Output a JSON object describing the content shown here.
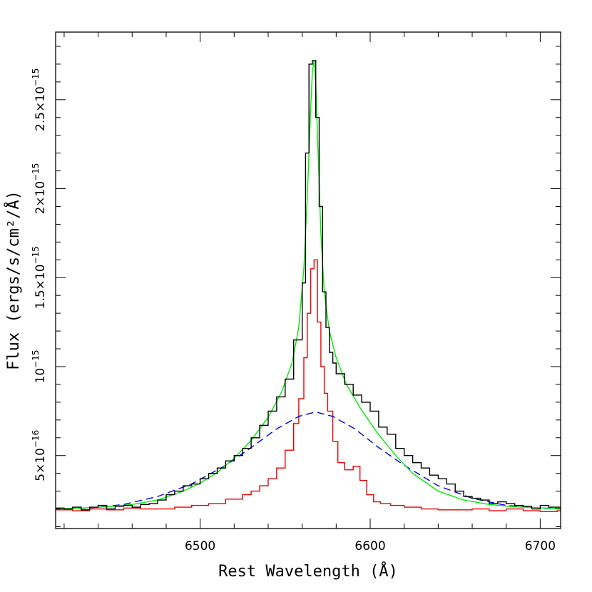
{
  "chart_data": {
    "type": "line",
    "title": "",
    "xlabel": "Rest Wavelength (Å)",
    "ylabel": "Flux (ergs/s/cm²/Å)",
    "xlim": [
      6415,
      6712
    ],
    "ylim": [
      9e-17,
      2.88e-15
    ],
    "x_ticks": [
      {
        "value": 6500,
        "label": "6500"
      },
      {
        "value": 6600,
        "label": "6600"
      },
      {
        "value": 6700,
        "label": "6700"
      }
    ],
    "y_ticks": [
      {
        "value": 5e-16,
        "mantissa": "5×10",
        "exponent": "−16"
      },
      {
        "value": 1e-15,
        "mantissa": "10",
        "exponent": "−15"
      },
      {
        "value": 1.5e-15,
        "mantissa": "1.5×10",
        "exponent": "−15"
      },
      {
        "value": 2e-15,
        "mantissa": "2×10",
        "exponent": "−15"
      },
      {
        "value": 2.5e-15,
        "mantissa": "2.5×10",
        "exponent": "−15"
      }
    ],
    "series": [
      {
        "color": "#000000",
        "style": "step",
        "x": [
          6415,
          6420,
          6425,
          6430,
          6435,
          6440,
          6445,
          6450,
          6455,
          6460,
          6465,
          6470,
          6475,
          6480,
          6485,
          6490,
          6495,
          6500,
          6505,
          6510,
          6515,
          6520,
          6525,
          6530,
          6535,
          6540,
          6545,
          6550,
          6555,
          6560,
          6562,
          6564,
          6566,
          6568,
          6570,
          6572,
          6574,
          6576,
          6578,
          6580,
          6585,
          6590,
          6595,
          6600,
          6605,
          6610,
          6615,
          6620,
          6625,
          6630,
          6635,
          6640,
          6645,
          6650,
          6655,
          6660,
          6665,
          6670,
          6675,
          6680,
          6685,
          6690,
          6695,
          6700,
          6705,
          6710
        ],
        "y": [
          2.05e-16,
          2e-16,
          2.1e-16,
          1.95e-16,
          2.1e-16,
          2.2e-16,
          2e-16,
          2.15e-16,
          2.2e-16,
          2.1e-16,
          2.25e-16,
          2.3e-16,
          2.5e-16,
          2.8e-16,
          3e-16,
          3.3e-16,
          3.4e-16,
          3.7e-16,
          4e-16,
          4.3e-16,
          4.7e-16,
          5e-16,
          5.4e-16,
          6e-16,
          6.7e-16,
          7.5e-16,
          8.3e-16,
          9.3e-16,
          1.15e-15,
          1.47e-15,
          2.2e-15,
          2.7e-15,
          2.72e-15,
          2.4e-15,
          1.9e-15,
          1.42e-15,
          1.22e-15,
          1.08e-15,
          1.02e-15,
          9.6e-16,
          9e-16,
          8.4e-16,
          8e-16,
          7.5e-16,
          6.6e-16,
          6.2e-16,
          5.4e-16,
          5e-16,
          4.6e-16,
          4.3e-16,
          3.9e-16,
          3.7e-16,
          3.4e-16,
          3e-16,
          2.7e-16,
          2.6e-16,
          2.5e-16,
          2.3e-16,
          2.4e-16,
          2.3e-16,
          2.2e-16,
          2.15e-16,
          2e-16,
          2.2e-16,
          2.1e-16,
          2.1e-16
        ]
      },
      {
        "color": "#00ee00",
        "style": "line",
        "x": [
          6415,
          6430,
          6445,
          6460,
          6475,
          6490,
          6500,
          6510,
          6520,
          6530,
          6540,
          6548,
          6554,
          6558,
          6561,
          6563,
          6565,
          6566,
          6567,
          6568,
          6569,
          6571,
          6573,
          6576,
          6580,
          6586,
          6594,
          6604,
          6615,
          6625,
          6640,
          6655,
          6670,
          6685,
          6700,
          6712
        ],
        "y": [
          2e-16,
          2.05e-16,
          2.12e-16,
          2.25e-16,
          2.5e-16,
          3e-16,
          3.45e-16,
          4.05e-16,
          4.85e-16,
          5.85e-16,
          7.15e-16,
          8.6e-16,
          1.02e-15,
          1.22e-15,
          1.55e-15,
          1.95e-15,
          2.45e-15,
          2.66e-15,
          2.72e-15,
          2.6e-15,
          2.3e-15,
          1.75e-15,
          1.42e-15,
          1.2e-15,
          1.05e-15,
          9e-16,
          7.7e-16,
          6.3e-16,
          5e-16,
          4e-16,
          3e-16,
          2.5e-16,
          2.25e-16,
          2.12e-16,
          2.06e-16,
          2.03e-16
        ]
      },
      {
        "color": "#0000ee",
        "style": "dashed",
        "x": [
          6415,
          6435,
          6455,
          6475,
          6495,
          6515,
          6530,
          6545,
          6558,
          6568,
          6578,
          6591,
          6605,
          6620,
          6640,
          6660,
          6680,
          6700,
          6712
        ],
        "y": [
          2e-16,
          2.05e-16,
          2.25e-16,
          2.7e-16,
          3.4e-16,
          4.45e-16,
          5.45e-16,
          6.5e-16,
          7.2e-16,
          7.45e-16,
          7.2e-16,
          6.5e-16,
          5.45e-16,
          4.45e-16,
          3.3e-16,
          2.6e-16,
          2.2e-16,
          2.05e-16,
          2e-16
        ]
      },
      {
        "color": "#ee0000",
        "style": "step",
        "x": [
          6415,
          6425,
          6435,
          6445,
          6455,
          6465,
          6475,
          6485,
          6495,
          6505,
          6515,
          6525,
          6530,
          6535,
          6540,
          6545,
          6550,
          6555,
          6558,
          6561,
          6563,
          6565,
          6567,
          6569,
          6571,
          6573,
          6575,
          6578,
          6581,
          6585,
          6590,
          6594,
          6598,
          6602,
          6606,
          6612,
          6620,
          6630,
          6640,
          6650,
          6660,
          6670,
          6680,
          6690,
          6700,
          6710
        ],
        "y": [
          1.95e-16,
          1.9e-16,
          2e-16,
          1.95e-16,
          2.05e-16,
          2e-16,
          2e-16,
          2.1e-16,
          2.2e-16,
          2.3e-16,
          2.55e-16,
          2.8e-16,
          3e-16,
          3.3e-16,
          3.7e-16,
          4.3e-16,
          5.3e-16,
          6.8e-16,
          8.2e-16,
          1.05e-15,
          1.3e-15,
          1.55e-15,
          1.6e-15,
          1.25e-15,
          1e-15,
          8.5e-16,
          7.5e-16,
          5.8e-16,
          4.6e-16,
          4.2e-16,
          4.4e-16,
          3.6e-16,
          2.8e-16,
          2.4e-16,
          2.3e-16,
          2.2e-16,
          2.1e-16,
          2e-16,
          1.95e-16,
          1.95e-16,
          2e-16,
          1.9e-16,
          2e-16,
          1.9e-16,
          1.85e-16,
          1.9e-16
        ]
      }
    ]
  }
}
